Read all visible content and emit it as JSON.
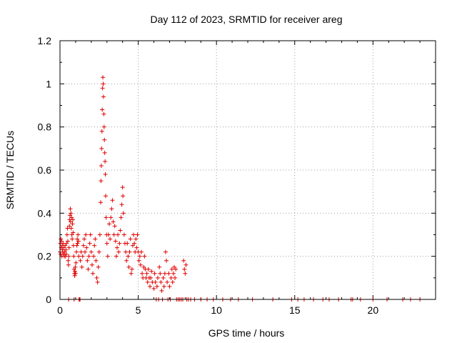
{
  "chart_data": {
    "type": "scatter",
    "title": "Day 112 of 2023, SRMTID for receiver areg",
    "xlabel": "GPS time / hours",
    "ylabel": "SRMTID / TECUs",
    "xlim": [
      0,
      24
    ],
    "ylim": [
      0,
      1.2
    ],
    "x_ticks": [
      0,
      5,
      10,
      15,
      20
    ],
    "y_ticks": [
      0,
      0.2,
      0.4,
      0.6,
      0.8,
      1,
      1.2
    ],
    "x_tick_labels": [
      "0",
      "5",
      "10",
      "15",
      "20"
    ],
    "y_tick_labels": [
      "0",
      "0.2",
      "0.4",
      "0.6",
      "0.8",
      "1",
      "1.2"
    ],
    "grid": true,
    "marker": "+",
    "series": [
      {
        "name": "SRMTID",
        "color": "#e00000",
        "points": [
          [
            0.0,
            0.22
          ],
          [
            0.02,
            0.26
          ],
          [
            0.04,
            0.21
          ],
          [
            0.06,
            0.28
          ],
          [
            0.08,
            0.24
          ],
          [
            0.1,
            0.27
          ],
          [
            0.12,
            0.2
          ],
          [
            0.14,
            0.25
          ],
          [
            0.16,
            0.23
          ],
          [
            0.18,
            0.22
          ],
          [
            0.2,
            0.26
          ],
          [
            0.22,
            0.21
          ],
          [
            0.25,
            0.24
          ],
          [
            0.28,
            0.2
          ],
          [
            0.3,
            0.22
          ],
          [
            0.33,
            0.25
          ],
          [
            0.36,
            0.2
          ],
          [
            0.38,
            0.23
          ],
          [
            0.4,
            0.21
          ],
          [
            0.42,
            0.26
          ],
          [
            0.45,
            0.3
          ],
          [
            0.48,
            0.33
          ],
          [
            0.5,
            0.27
          ],
          [
            0.52,
            0.18
          ],
          [
            0.54,
            0.16
          ],
          [
            0.56,
            0.2
          ],
          [
            0.58,
            0.24
          ],
          [
            0.6,
            0.34
          ],
          [
            0.62,
            0.37
          ],
          [
            0.64,
            0.39
          ],
          [
            0.66,
            0.42
          ],
          [
            0.68,
            0.36
          ],
          [
            0.7,
            0.4
          ],
          [
            0.72,
            0.33
          ],
          [
            0.74,
            0.38
          ],
          [
            0.76,
            0.3
          ],
          [
            0.78,
            0.28
          ],
          [
            0.8,
            0.35
          ],
          [
            0.82,
            0.37
          ],
          [
            0.84,
            0.31
          ],
          [
            0.86,
            0.25
          ],
          [
            0.88,
            0.2
          ],
          [
            0.9,
            0.14
          ],
          [
            0.92,
            0.12
          ],
          [
            0.94,
            0.11
          ],
          [
            0.96,
            0.13
          ],
          [
            0.98,
            0.15
          ],
          [
            1.0,
            0.12
          ],
          [
            1.02,
            0.17
          ],
          [
            1.05,
            0.22
          ],
          [
            1.08,
            0.25
          ],
          [
            1.1,
            0.28
          ],
          [
            1.12,
            0.26
          ],
          [
            1.15,
            0.3
          ],
          [
            1.18,
            0.27
          ],
          [
            1.2,
            0.2
          ],
          [
            1.22,
            0.0
          ],
          [
            1.25,
            0.0
          ],
          [
            1.3,
            0.18
          ],
          [
            1.35,
            0.22
          ],
          [
            1.4,
            0.15
          ],
          [
            1.45,
            0.2
          ],
          [
            1.5,
            0.25
          ],
          [
            1.55,
            0.28
          ],
          [
            1.6,
            0.22
          ],
          [
            1.65,
            0.3
          ],
          [
            1.7,
            0.24
          ],
          [
            1.75,
            0.18
          ],
          [
            1.8,
            0.14
          ],
          [
            1.85,
            0.2
          ],
          [
            1.9,
            0.26
          ],
          [
            1.95,
            0.3
          ],
          [
            2.0,
            0.22
          ],
          [
            2.05,
            0.16
          ],
          [
            2.1,
            0.12
          ],
          [
            2.15,
            0.2
          ],
          [
            2.2,
            0.25
          ],
          [
            2.25,
            0.28
          ],
          [
            2.3,
            0.18
          ],
          [
            2.35,
            0.1
          ],
          [
            2.4,
            0.08
          ],
          [
            2.45,
            0.15
          ],
          [
            2.5,
            0.22
          ],
          [
            2.55,
            0.3
          ],
          [
            2.6,
            0.45
          ],
          [
            2.62,
            0.55
          ],
          [
            2.64,
            0.62
          ],
          [
            2.66,
            0.7
          ],
          [
            2.68,
            0.78
          ],
          [
            2.7,
            0.88
          ],
          [
            2.72,
            0.98
          ],
          [
            2.74,
            1.03
          ],
          [
            2.76,
            1.0
          ],
          [
            2.78,
            0.94
          ],
          [
            2.8,
            0.86
          ],
          [
            2.82,
            0.8
          ],
          [
            2.84,
            0.74
          ],
          [
            2.86,
            0.68
          ],
          [
            2.88,
            0.64
          ],
          [
            2.9,
            0.58
          ],
          [
            2.92,
            0.48
          ],
          [
            2.95,
            0.38
          ],
          [
            2.98,
            0.3
          ],
          [
            3.0,
            0.26
          ],
          [
            3.05,
            0.2
          ],
          [
            3.1,
            0.3
          ],
          [
            3.15,
            0.35
          ],
          [
            3.2,
            0.28
          ],
          [
            3.25,
            0.38
          ],
          [
            3.3,
            0.42
          ],
          [
            3.35,
            0.46
          ],
          [
            3.4,
            0.36
          ],
          [
            3.45,
            0.3
          ],
          [
            3.5,
            0.34
          ],
          [
            3.55,
            0.27
          ],
          [
            3.6,
            0.2
          ],
          [
            3.65,
            0.24
          ],
          [
            3.7,
            0.3
          ],
          [
            3.75,
            0.22
          ],
          [
            3.8,
            0.26
          ],
          [
            3.85,
            0.32
          ],
          [
            3.9,
            0.38
          ],
          [
            3.95,
            0.44
          ],
          [
            4.0,
            0.52
          ],
          [
            4.02,
            0.48
          ],
          [
            4.05,
            0.4
          ],
          [
            4.1,
            0.3
          ],
          [
            4.15,
            0.26
          ],
          [
            4.2,
            0.22
          ],
          [
            4.25,
            0.18
          ],
          [
            4.3,
            0.26
          ],
          [
            4.35,
            0.2
          ],
          [
            4.4,
            0.15
          ],
          [
            4.45,
            0.22
          ],
          [
            4.5,
            0.28
          ],
          [
            4.55,
            0.12
          ],
          [
            4.6,
            0.14
          ],
          [
            4.65,
            0.25
          ],
          [
            4.7,
            0.3
          ],
          [
            4.75,
            0.26
          ],
          [
            4.8,
            0.22
          ],
          [
            4.85,
            0.28
          ],
          [
            4.9,
            0.24
          ],
          [
            4.95,
            0.3
          ],
          [
            5.0,
            0.22
          ],
          [
            5.05,
            0.18
          ],
          [
            5.1,
            0.2
          ],
          [
            5.15,
            0.16
          ],
          [
            5.2,
            0.22
          ],
          [
            5.25,
            0.12
          ],
          [
            5.3,
            0.1
          ],
          [
            5.35,
            0.15
          ],
          [
            5.4,
            0.2
          ],
          [
            5.45,
            0.14
          ],
          [
            5.5,
            0.1
          ],
          [
            5.55,
            0.12
          ],
          [
            5.6,
            0.08
          ],
          [
            5.65,
            0.14
          ],
          [
            5.7,
            0.1
          ],
          [
            5.75,
            0.06
          ],
          [
            5.8,
            0.1
          ],
          [
            5.85,
            0.13
          ],
          [
            5.9,
            0.08
          ],
          [
            6.0,
            0.05
          ],
          [
            6.05,
            0.12
          ],
          [
            6.1,
            0.08
          ],
          [
            6.15,
            0.0
          ],
          [
            6.2,
            0.06
          ],
          [
            6.25,
            0.1
          ],
          [
            6.3,
            0.0
          ],
          [
            6.35,
            0.15
          ],
          [
            6.4,
            0.12
          ],
          [
            6.45,
            0.08
          ],
          [
            6.5,
            0.04
          ],
          [
            6.55,
            0.0
          ],
          [
            6.6,
            0.1
          ],
          [
            6.65,
            0.06
          ],
          [
            6.7,
            0.12
          ],
          [
            6.75,
            0.22
          ],
          [
            6.8,
            0.18
          ],
          [
            6.85,
            0.08
          ],
          [
            6.9,
            0.0
          ],
          [
            6.95,
            0.12
          ],
          [
            7.0,
            0.06
          ],
          [
            7.05,
            0.0
          ],
          [
            7.1,
            0.1
          ],
          [
            7.15,
            0.14
          ],
          [
            7.2,
            0.08
          ],
          [
            7.25,
            0.12
          ],
          [
            7.3,
            0.15
          ],
          [
            7.35,
            0.1
          ],
          [
            7.4,
            0.14
          ],
          [
            7.45,
            0.0
          ],
          [
            7.55,
            0.0
          ],
          [
            7.65,
            0.0
          ],
          [
            7.75,
            0.0
          ],
          [
            7.85,
            0.0
          ],
          [
            7.9,
            0.18
          ],
          [
            7.95,
            0.14
          ],
          [
            8.0,
            0.12
          ],
          [
            8.05,
            0.16
          ],
          [
            8.1,
            0.0
          ],
          [
            8.2,
            0.0
          ],
          [
            8.35,
            0.0
          ],
          [
            8.6,
            0.0
          ],
          [
            9.0,
            0.0
          ],
          [
            9.4,
            0.0
          ],
          [
            9.8,
            0.0
          ],
          [
            10.4,
            0.0
          ],
          [
            10.9,
            0.0
          ],
          [
            11.4,
            0.0
          ],
          [
            12.3,
            0.0
          ],
          [
            13.6,
            0.0
          ],
          [
            14.8,
            0.0
          ],
          [
            15.2,
            0.0
          ],
          [
            15.6,
            0.0
          ],
          [
            16.2,
            0.0
          ],
          [
            16.8,
            0.0
          ],
          [
            17.2,
            0.0
          ],
          [
            17.8,
            0.0
          ],
          [
            18.6,
            0.0
          ],
          [
            18.7,
            0.0
          ],
          [
            19.2,
            0.0
          ],
          [
            20.0,
            0.0
          ],
          [
            20.9,
            0.0
          ],
          [
            21.9,
            0.0
          ],
          [
            22.4,
            0.0
          ],
          [
            23.0,
            0.0
          ],
          [
            0.55,
            0.0
          ],
          [
            0.9,
            0.0
          ],
          [
            1.23,
            0.0
          ],
          [
            1.28,
            0.0
          ]
        ]
      }
    ]
  }
}
